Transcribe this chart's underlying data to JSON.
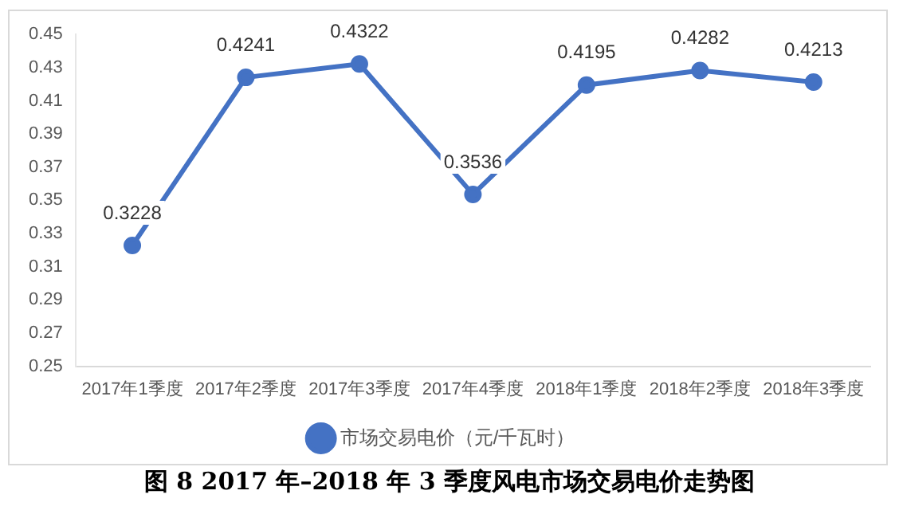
{
  "chart_data": {
    "type": "line",
    "title": "图 8 2017 年–2018 年 3 季度风电市场交易电价走势图",
    "categories": [
      "2017年1季度",
      "2017年2季度",
      "2017年3季度",
      "2017年4季度",
      "2018年1季度",
      "2018年2季度",
      "2018年3季度"
    ],
    "series": [
      {
        "name": "市场交易电价（元/千瓦时）",
        "color": "#4472c4",
        "values": [
          0.3228,
          0.4241,
          0.4322,
          0.3536,
          0.4195,
          0.4282,
          0.4213
        ]
      }
    ],
    "ylim": [
      0.25,
      0.45
    ],
    "yticks": [
      "0.25",
      "0.27",
      "0.29",
      "0.31",
      "0.33",
      "0.35",
      "0.37",
      "0.39",
      "0.41",
      "0.43",
      "0.45"
    ],
    "data_labels": true,
    "legend": "bottom",
    "marker": "circle",
    "line_style": "solid"
  }
}
